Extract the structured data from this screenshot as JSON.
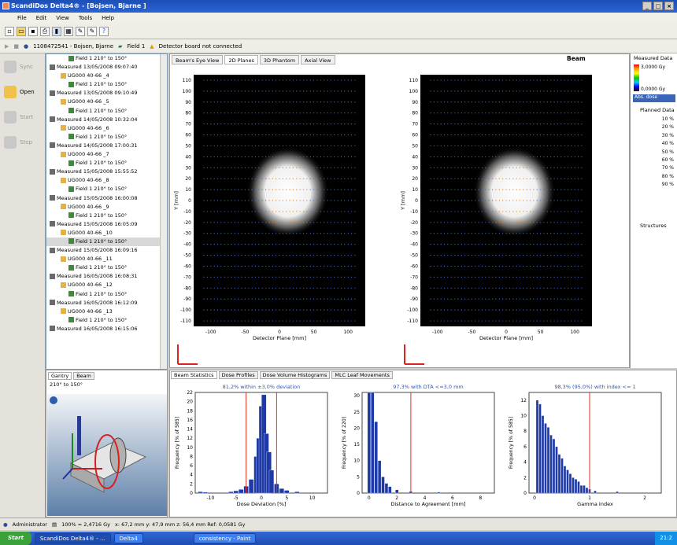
{
  "window": {
    "title": "ScandiDos Delta4® - [Bojsen, Bjarne ]"
  },
  "menu": [
    "File",
    "Edit",
    "View",
    "Tools",
    "Help"
  ],
  "toolbar2": {
    "patient": "1108472541 - Bojsen, Bjarne",
    "field": "Field 1",
    "warning": "Detector board not connected"
  },
  "sidebuttons": [
    "Sync",
    "Open",
    "Start",
    "Stop"
  ],
  "tree": [
    {
      "indent": 28,
      "text": "Field 1  210° to 150°",
      "kind": "field"
    },
    {
      "indent": 4,
      "text": "Measured  13/05/2008 09:07:40",
      "kind": "meas"
    },
    {
      "indent": 18,
      "text": "UG000 40-66 _4",
      "kind": "plan"
    },
    {
      "indent": 28,
      "text": "Field 1  210° to 150°",
      "kind": "field"
    },
    {
      "indent": 4,
      "text": "Measured  13/05/2008 09:10:49",
      "kind": "meas"
    },
    {
      "indent": 18,
      "text": "UG000 40-66 _5",
      "kind": "plan"
    },
    {
      "indent": 28,
      "text": "Field 1  210° to 150°",
      "kind": "field"
    },
    {
      "indent": 4,
      "text": "Measured  14/05/2008 10:32:04",
      "kind": "meas"
    },
    {
      "indent": 18,
      "text": "UG000 40-66 _6",
      "kind": "plan"
    },
    {
      "indent": 28,
      "text": "Field 1  210° to 150°",
      "kind": "field"
    },
    {
      "indent": 4,
      "text": "Measured  14/05/2008 17:00:31",
      "kind": "meas"
    },
    {
      "indent": 18,
      "text": "UG000 40-66 _7",
      "kind": "plan"
    },
    {
      "indent": 28,
      "text": "Field 1  210° to 150°",
      "kind": "field"
    },
    {
      "indent": 4,
      "text": "Measured  15/05/2008 15:55:52",
      "kind": "meas"
    },
    {
      "indent": 18,
      "text": "UG000 40-66 _8",
      "kind": "plan"
    },
    {
      "indent": 28,
      "text": "Field 1  210° to 150°",
      "kind": "field"
    },
    {
      "indent": 4,
      "text": "Measured  15/05/2008 16:00:08",
      "kind": "meas"
    },
    {
      "indent": 18,
      "text": "UG000 40-66 _9",
      "kind": "plan"
    },
    {
      "indent": 28,
      "text": "Field 1  210° to 150°",
      "kind": "field"
    },
    {
      "indent": 4,
      "text": "Measured  15/05/2008 16:05:09",
      "kind": "meas"
    },
    {
      "indent": 18,
      "text": "UG000 40-66 _10",
      "kind": "plan"
    },
    {
      "indent": 28,
      "text": "Field 1  210° to 150°",
      "kind": "field",
      "selected": true
    },
    {
      "indent": 4,
      "text": "Measured  15/05/2008 16:09:16",
      "kind": "meas"
    },
    {
      "indent": 18,
      "text": "UG000 40-66 _11",
      "kind": "plan"
    },
    {
      "indent": 28,
      "text": "Field 1  210° to 150°",
      "kind": "field"
    },
    {
      "indent": 4,
      "text": "Measured  16/05/2008 16:08:31",
      "kind": "meas"
    },
    {
      "indent": 18,
      "text": "UG000 40-66 _12",
      "kind": "plan"
    },
    {
      "indent": 28,
      "text": "Field 1  210° to 150°",
      "kind": "field"
    },
    {
      "indent": 4,
      "text": "Measured  16/05/2008 16:12:09",
      "kind": "meas"
    },
    {
      "indent": 18,
      "text": "UG000 40-66 _13",
      "kind": "plan"
    },
    {
      "indent": 28,
      "text": "Field 1  210° to 150°",
      "kind": "field"
    },
    {
      "indent": 4,
      "text": "Measured  16/05/2008 16:15:06",
      "kind": "meas"
    }
  ],
  "viewtabs": [
    "Beam's Eye View",
    "2D Planes",
    "3D Phantom",
    "Axial View"
  ],
  "beamlabel": "Beam",
  "plots": {
    "yticks": [
      "110",
      "100",
      "90",
      "80",
      "70",
      "60",
      "50",
      "40",
      "30",
      "20",
      "10",
      "0",
      "-10",
      "-20",
      "-30",
      "-40",
      "-50",
      "-60",
      "-70",
      "-80",
      "-90",
      "-100",
      "-110"
    ],
    "xticks": [
      "-100",
      "-50",
      "0",
      "50",
      "100"
    ],
    "xlabel": "Detector Plane [mm]",
    "ylabel": "Y [mm]"
  },
  "rightpanel": {
    "measured": "Measured Data",
    "max": "3,0000 Gy",
    "min": "0,0000 Gy",
    "mode": "Abs. dose",
    "planned": "Planned Data",
    "levels": [
      "10 %",
      "20 %",
      "30 %",
      "40 %",
      "50 %",
      "60 %",
      "70 %",
      "80 %",
      "90 %"
    ],
    "structures": "Structures"
  },
  "bottomtabs": [
    "Beam Statistics",
    "Dose Profiles",
    "Dose Volume Histograms",
    "MLC Leaf Movements"
  ],
  "gantry": {
    "tabs": [
      "Gantry",
      "Beam"
    ],
    "angle": "210° to 150°"
  },
  "histograms": [
    {
      "title": "81,2% within ±3,0% deviation",
      "ylabel": "Frequency [% of 585]",
      "xlabel": "Dose Deviation [%]",
      "yticks": [
        "22",
        "20",
        "18",
        "16",
        "14",
        "12",
        "10",
        "8",
        "6",
        "4",
        "2",
        "0"
      ],
      "xticks": [
        "-10",
        "-5",
        "0",
        "5",
        "10"
      ],
      "xmin": -13,
      "xmax": 13,
      "ymax": 22,
      "lines": [
        -3,
        3
      ],
      "bars": [
        [
          -12,
          0.3
        ],
        [
          -11,
          0.2
        ],
        [
          -6,
          0.3
        ],
        [
          -5,
          0.5
        ],
        [
          -4,
          0.8
        ],
        [
          -3,
          1.5
        ],
        [
          -2,
          3
        ],
        [
          -1,
          8
        ],
        [
          -0.5,
          12
        ],
        [
          0,
          19
        ],
        [
          0.5,
          21.5
        ],
        [
          1,
          13
        ],
        [
          1.5,
          9
        ],
        [
          2,
          5
        ],
        [
          3,
          2
        ],
        [
          4,
          1
        ],
        [
          5,
          0.6
        ],
        [
          7,
          0.3
        ]
      ]
    },
    {
      "title": "97,3% with DTA <=3,0 mm",
      "ylabel": "Frequency [% of 220]",
      "xlabel": "Distance to Agreement [mm]",
      "yticks": [
        "30",
        "25",
        "20",
        "15",
        "10",
        "5",
        "0"
      ],
      "xticks": [
        "0",
        "2",
        "4",
        "6",
        "8"
      ],
      "xmin": -0.5,
      "xmax": 9,
      "ymax": 31,
      "lines": [
        3
      ],
      "bars": [
        [
          0,
          31
        ],
        [
          0.25,
          31
        ],
        [
          0.5,
          22
        ],
        [
          0.75,
          10
        ],
        [
          1,
          5
        ],
        [
          1.25,
          3
        ],
        [
          1.5,
          2
        ],
        [
          2,
          1
        ],
        [
          3,
          0.5
        ],
        [
          5,
          0.3
        ]
      ]
    },
    {
      "title": "98,3% (95,0%) with index <= 1",
      "ylabel": "Frequency [% of 585]",
      "xlabel": "Gamma Index",
      "yticks": [
        "12",
        "10",
        "8",
        "6",
        "4",
        "2",
        "0"
      ],
      "xticks": [
        "0",
        "1",
        "2"
      ],
      "xmin": -0.1,
      "xmax": 2.3,
      "ymax": 13,
      "lines": [
        1
      ],
      "bars": [
        [
          0.05,
          12
        ],
        [
          0.1,
          11.5
        ],
        [
          0.15,
          10
        ],
        [
          0.2,
          9
        ],
        [
          0.25,
          8.5
        ],
        [
          0.3,
          7.5
        ],
        [
          0.35,
          7
        ],
        [
          0.4,
          6
        ],
        [
          0.45,
          5
        ],
        [
          0.5,
          4.5
        ],
        [
          0.55,
          3.5
        ],
        [
          0.6,
          3
        ],
        [
          0.65,
          2.5
        ],
        [
          0.7,
          2
        ],
        [
          0.75,
          1.8
        ],
        [
          0.8,
          1.5
        ],
        [
          0.85,
          1
        ],
        [
          0.9,
          1
        ],
        [
          0.95,
          0.7
        ],
        [
          1,
          0.5
        ],
        [
          1.1,
          0.3
        ],
        [
          1.5,
          0.2
        ]
      ]
    }
  ],
  "status": {
    "user": "Administrator",
    "zoom": "100% = 2,4716 Gy",
    "coords": "x: 67,2 mm  y: 47,9 mm  z: 56,4 mm  Ref: 0,0581 Gy"
  },
  "taskbar": {
    "start": "Start",
    "items": [
      "ScandiDos Delta4® - ...",
      "Delta4",
      "consistency - Paint"
    ],
    "clock": "21:2"
  }
}
